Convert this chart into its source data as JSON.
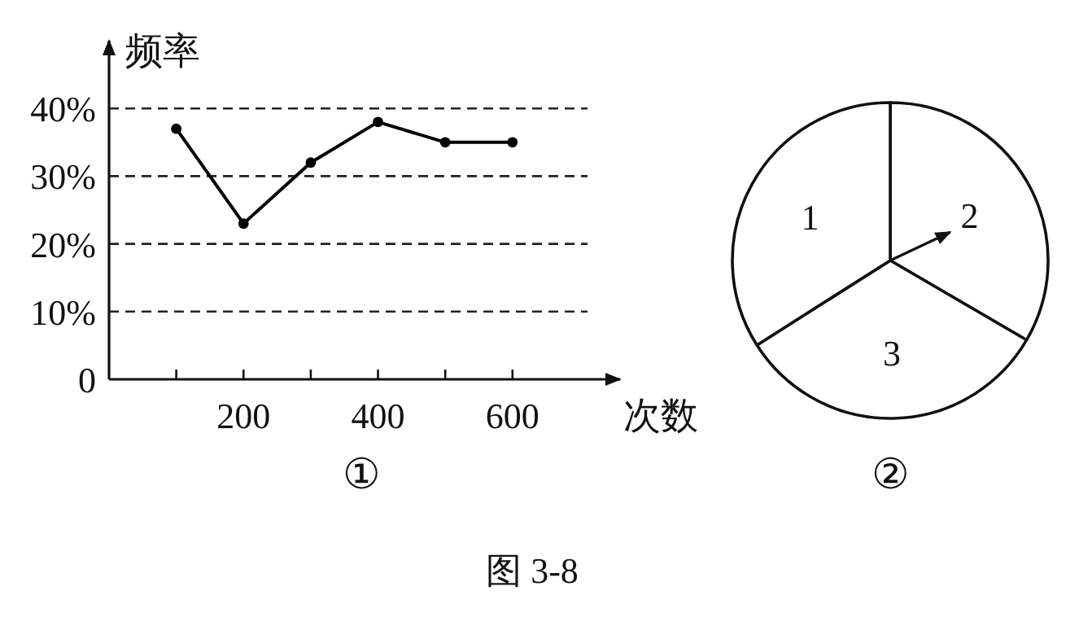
{
  "chart_data": [
    {
      "type": "line",
      "xlabel": "次数",
      "ylabel": "频率",
      "x": [
        100,
        200,
        300,
        400,
        500,
        600
      ],
      "values": [
        37,
        23,
        32,
        38,
        35,
        35
      ],
      "color": "#000000",
      "marker": "circle",
      "line_style": "solid",
      "xlim": [
        0,
        760
      ],
      "ylim": [
        0,
        50
      ],
      "xticks": [
        {
          "value": 100,
          "label": null
        },
        200,
        {
          "value": 300,
          "label": null
        },
        400,
        {
          "value": 500,
          "label": null
        },
        600
      ],
      "yticks": [
        0,
        {
          "value": 10,
          "label": "10%"
        },
        {
          "value": 20,
          "label": "20%"
        },
        {
          "value": 30,
          "label": "30%"
        },
        {
          "value": 40,
          "label": "40%"
        }
      ],
      "grid": "y",
      "annotations": [
        "①",
        "图 3-8"
      ]
    },
    {
      "type": "pie",
      "categories": [
        "2",
        "3",
        "1"
      ],
      "values": [
        33.4,
        32.6,
        34.0
      ],
      "colors": [
        "#ffffff",
        "#ffffff",
        "#ffffff"
      ],
      "needle": "2",
      "annotations": [
        "②"
      ]
    }
  ]
}
